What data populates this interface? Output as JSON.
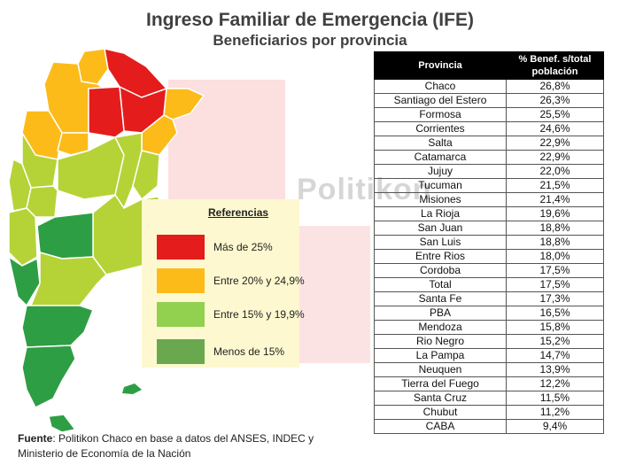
{
  "title": "Ingreso Familiar de Emergencia (IFE)",
  "subtitle": "Beneficiarios por provincia",
  "watermark": "Politikon",
  "legend": {
    "title": "Referencias",
    "items": [
      {
        "label": "Más de 25%",
        "color": "#e41c1c"
      },
      {
        "label": "Entre 20% y 24,9%",
        "color": "#fdbb1a"
      },
      {
        "label": "Entre 15% y 19,9%",
        "color": "#92d050"
      },
      {
        "label": "Menos de 15%",
        "color": "#6aa84f"
      }
    ]
  },
  "table": {
    "headers": [
      "Provincia",
      "% Benef. s/total población"
    ],
    "rows": [
      {
        "provincia": "Chaco",
        "valor": "26,8%"
      },
      {
        "provincia": "Santiago del Estero",
        "valor": "26,3%"
      },
      {
        "provincia": "Formosa",
        "valor": "25,5%"
      },
      {
        "provincia": "Corrientes",
        "valor": "24,6%"
      },
      {
        "provincia": "Salta",
        "valor": "22,9%"
      },
      {
        "provincia": "Catamarca",
        "valor": "22,9%"
      },
      {
        "provincia": "Jujuy",
        "valor": "22,0%"
      },
      {
        "provincia": "Tucuman",
        "valor": "21,5%"
      },
      {
        "provincia": "Misiones",
        "valor": "21,4%"
      },
      {
        "provincia": "La Rioja",
        "valor": "19,6%"
      },
      {
        "provincia": "San Juan",
        "valor": "18,8%"
      },
      {
        "provincia": "San Luis",
        "valor": "18,8%"
      },
      {
        "provincia": "Entre Rios",
        "valor": "18,0%"
      },
      {
        "provincia": "Cordoba",
        "valor": "17,5%"
      },
      {
        "provincia": "Total",
        "valor": "17,5%"
      },
      {
        "provincia": "Santa Fe",
        "valor": "17,3%"
      },
      {
        "provincia": "PBA",
        "valor": "16,5%"
      },
      {
        "provincia": "Mendoza",
        "valor": "15,8%"
      },
      {
        "provincia": "Rio Negro",
        "valor": "15,2%"
      },
      {
        "provincia": "La Pampa",
        "valor": "14,7%"
      },
      {
        "provincia": "Neuquen",
        "valor": "13,9%"
      },
      {
        "provincia": "Tierra del Fuego",
        "valor": "12,2%"
      },
      {
        "provincia": "Santa Cruz",
        "valor": "11,5%"
      },
      {
        "provincia": "Chubut",
        "valor": "11,2%"
      },
      {
        "provincia": "CABA",
        "valor": "9,4%"
      }
    ]
  },
  "source": {
    "label": "Fuente",
    "text": ": Politikon Chaco en base a datos del ANSES, INDEC y Ministerio de Economía de la Nación"
  },
  "map_colors": {
    "high": "#e41c1c",
    "mid_high": "#fdbb1a",
    "mid": "#b5d336",
    "low": "#2e9e44",
    "highlight_bg": "#fbd7d7"
  }
}
